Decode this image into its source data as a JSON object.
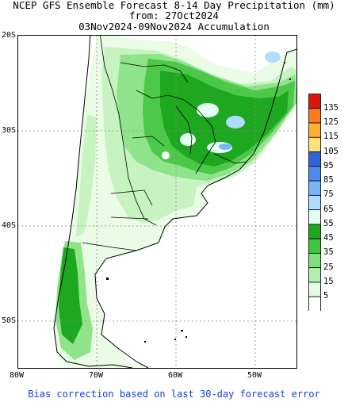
{
  "title": {
    "line1": "NCEP GFS Ensemble Forecast 8-14 Day Precipitation (mm)",
    "line2": "from: 27Oct2024",
    "line3": "03Nov2024-09Nov2024 Accumulation"
  },
  "axes": {
    "lat_labels": [
      "20S",
      "30S",
      "40S",
      "50S"
    ],
    "lon_labels": [
      "80W",
      "70W",
      "60W",
      "50W"
    ]
  },
  "legend": {
    "values": [
      "135",
      "125",
      "115",
      "105",
      "95",
      "85",
      "75",
      "65",
      "55",
      "45",
      "35",
      "25",
      "15",
      "5"
    ],
    "colors": [
      "#e0140c",
      "#ff7a1a",
      "#ffb030",
      "#ffe27a",
      "#2f64d8",
      "#4c8cf0",
      "#78b6f8",
      "#b0dcff",
      "#e2fff2",
      "#19a81b",
      "#3cc63a",
      "#7ee07a",
      "#b2f0ae",
      "#e4fde0",
      "#ffffff"
    ]
  },
  "footer": "Bias correction based on last 30-day forecast error"
}
